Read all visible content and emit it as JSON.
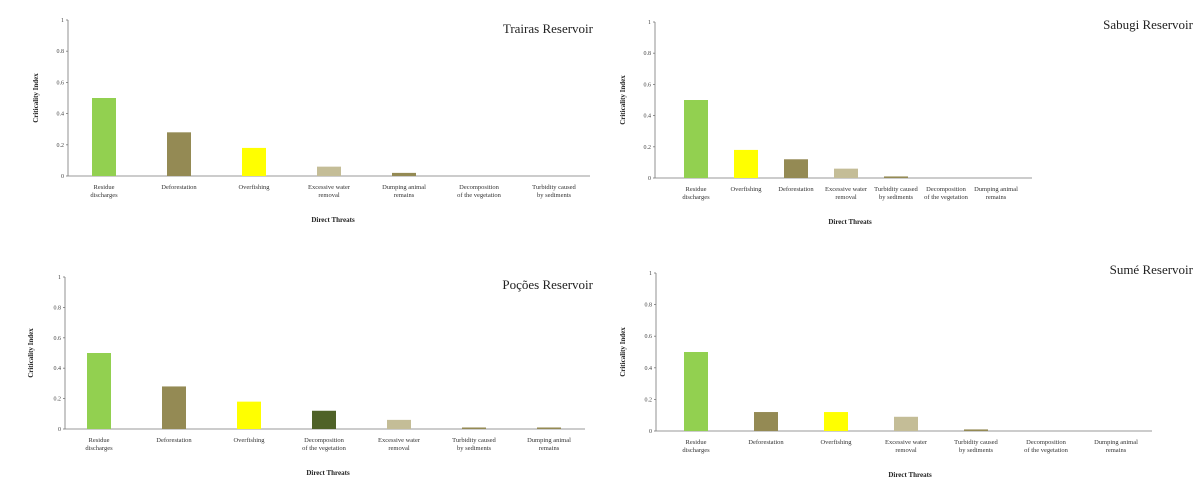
{
  "colors": {
    "Residue discharges": "#92d050",
    "Deforestation": "#948a54",
    "Overfishing": "#ffff00",
    "Excessive water removal": "#c4bd97",
    "Dumping animal remains": "#948a54",
    "Decomposition of the vegetation": "#4f6228",
    "Turbidity caused by sediments": "#948a54"
  },
  "chart_data": [
    {
      "type": "bar",
      "title": "Trairas Reservoir",
      "xlabel": "Direct Threats",
      "ylabel": "Criticality Index",
      "ylim": [
        0,
        1
      ],
      "yticks": [
        "0",
        "0.2",
        "0.4",
        "0.6",
        "0.8",
        "1"
      ],
      "categories": [
        [
          "Residue",
          "discharges"
        ],
        [
          "Deforestation"
        ],
        [
          "Overfishing"
        ],
        [
          "Excessive water",
          "removal"
        ],
        [
          "Dumping animal",
          "remains"
        ],
        [
          "Decomposition",
          "of the vegetation"
        ],
        [
          "Turbidity caused",
          "by sediments"
        ]
      ],
      "color_keys": [
        "Residue discharges",
        "Deforestation",
        "Overfishing",
        "Excessive water removal",
        "Dumping animal remains",
        "Decomposition of the vegetation",
        "Turbidity caused by sediments"
      ],
      "values": [
        0.5,
        0.28,
        0.18,
        0.06,
        0.02,
        0,
        0
      ]
    },
    {
      "type": "bar",
      "title": "Sabugi Reservoir",
      "xlabel": "Direct Threats",
      "ylabel": "Criticality Index",
      "ylim": [
        0,
        1
      ],
      "yticks": [
        "0",
        "0.2",
        "0.4",
        "0.6",
        "0.8",
        "1"
      ],
      "categories": [
        [
          "Residue",
          "discharges"
        ],
        [
          "Overfishing"
        ],
        [
          "Deforestation"
        ],
        [
          "Excessive water",
          "removal"
        ],
        [
          "Turbidity caused",
          "by sediments"
        ],
        [
          "Decomposition",
          "of the vegetation"
        ],
        [
          "Dumping animal",
          "remains"
        ]
      ],
      "color_keys": [
        "Residue discharges",
        "Overfishing",
        "Deforestation",
        "Excessive water removal",
        "Turbidity caused by sediments",
        "Decomposition of the vegetation",
        "Dumping animal remains"
      ],
      "values": [
        0.5,
        0.18,
        0.12,
        0.06,
        0.01,
        0,
        0
      ]
    },
    {
      "type": "bar",
      "title": "Poções Reservoir",
      "xlabel": "Direct Threats",
      "ylabel": "Criticality Index",
      "ylim": [
        0,
        1
      ],
      "yticks": [
        "0",
        "0.2",
        "0.4",
        "0.6",
        "0.8",
        "1"
      ],
      "categories": [
        [
          "Residue",
          "discharges"
        ],
        [
          "Deforestation"
        ],
        [
          "Overfishing"
        ],
        [
          "Decomposition",
          "of the vegetation"
        ],
        [
          "Excessive water",
          "removal"
        ],
        [
          "Turbidity caused",
          "by sediments"
        ],
        [
          "Dumping animal",
          "remains"
        ]
      ],
      "color_keys": [
        "Residue discharges",
        "Deforestation",
        "Overfishing",
        "Decomposition of the vegetation",
        "Excessive water removal",
        "Turbidity caused by sediments",
        "Dumping animal remains"
      ],
      "values": [
        0.5,
        0.28,
        0.18,
        0.12,
        0.06,
        0.01,
        0.01
      ]
    },
    {
      "type": "bar",
      "title": "Sumé Reservoir",
      "xlabel": "Direct Threats",
      "ylabel": "Criticality Index",
      "ylim": [
        0,
        1
      ],
      "yticks": [
        "0",
        "0.2",
        "0.4",
        "0.6",
        "0.8",
        "1"
      ],
      "categories": [
        [
          "Residue",
          "discharges"
        ],
        [
          "Deforestation"
        ],
        [
          "Overfishing"
        ],
        [
          "Excessive water",
          "removal"
        ],
        [
          "Turbidity caused",
          "by sediments"
        ],
        [
          "Decomposition",
          "of the vegetation"
        ],
        [
          "Dumping animal",
          "remains"
        ]
      ],
      "color_keys": [
        "Residue discharges",
        "Deforestation",
        "Overfishing",
        "Excessive water removal",
        "Turbidity caused by sediments",
        "Decomposition of the vegetation",
        "Dumping animal remains"
      ],
      "values": [
        0.5,
        0.12,
        0.12,
        0.09,
        0.01,
        0,
        0
      ]
    }
  ]
}
